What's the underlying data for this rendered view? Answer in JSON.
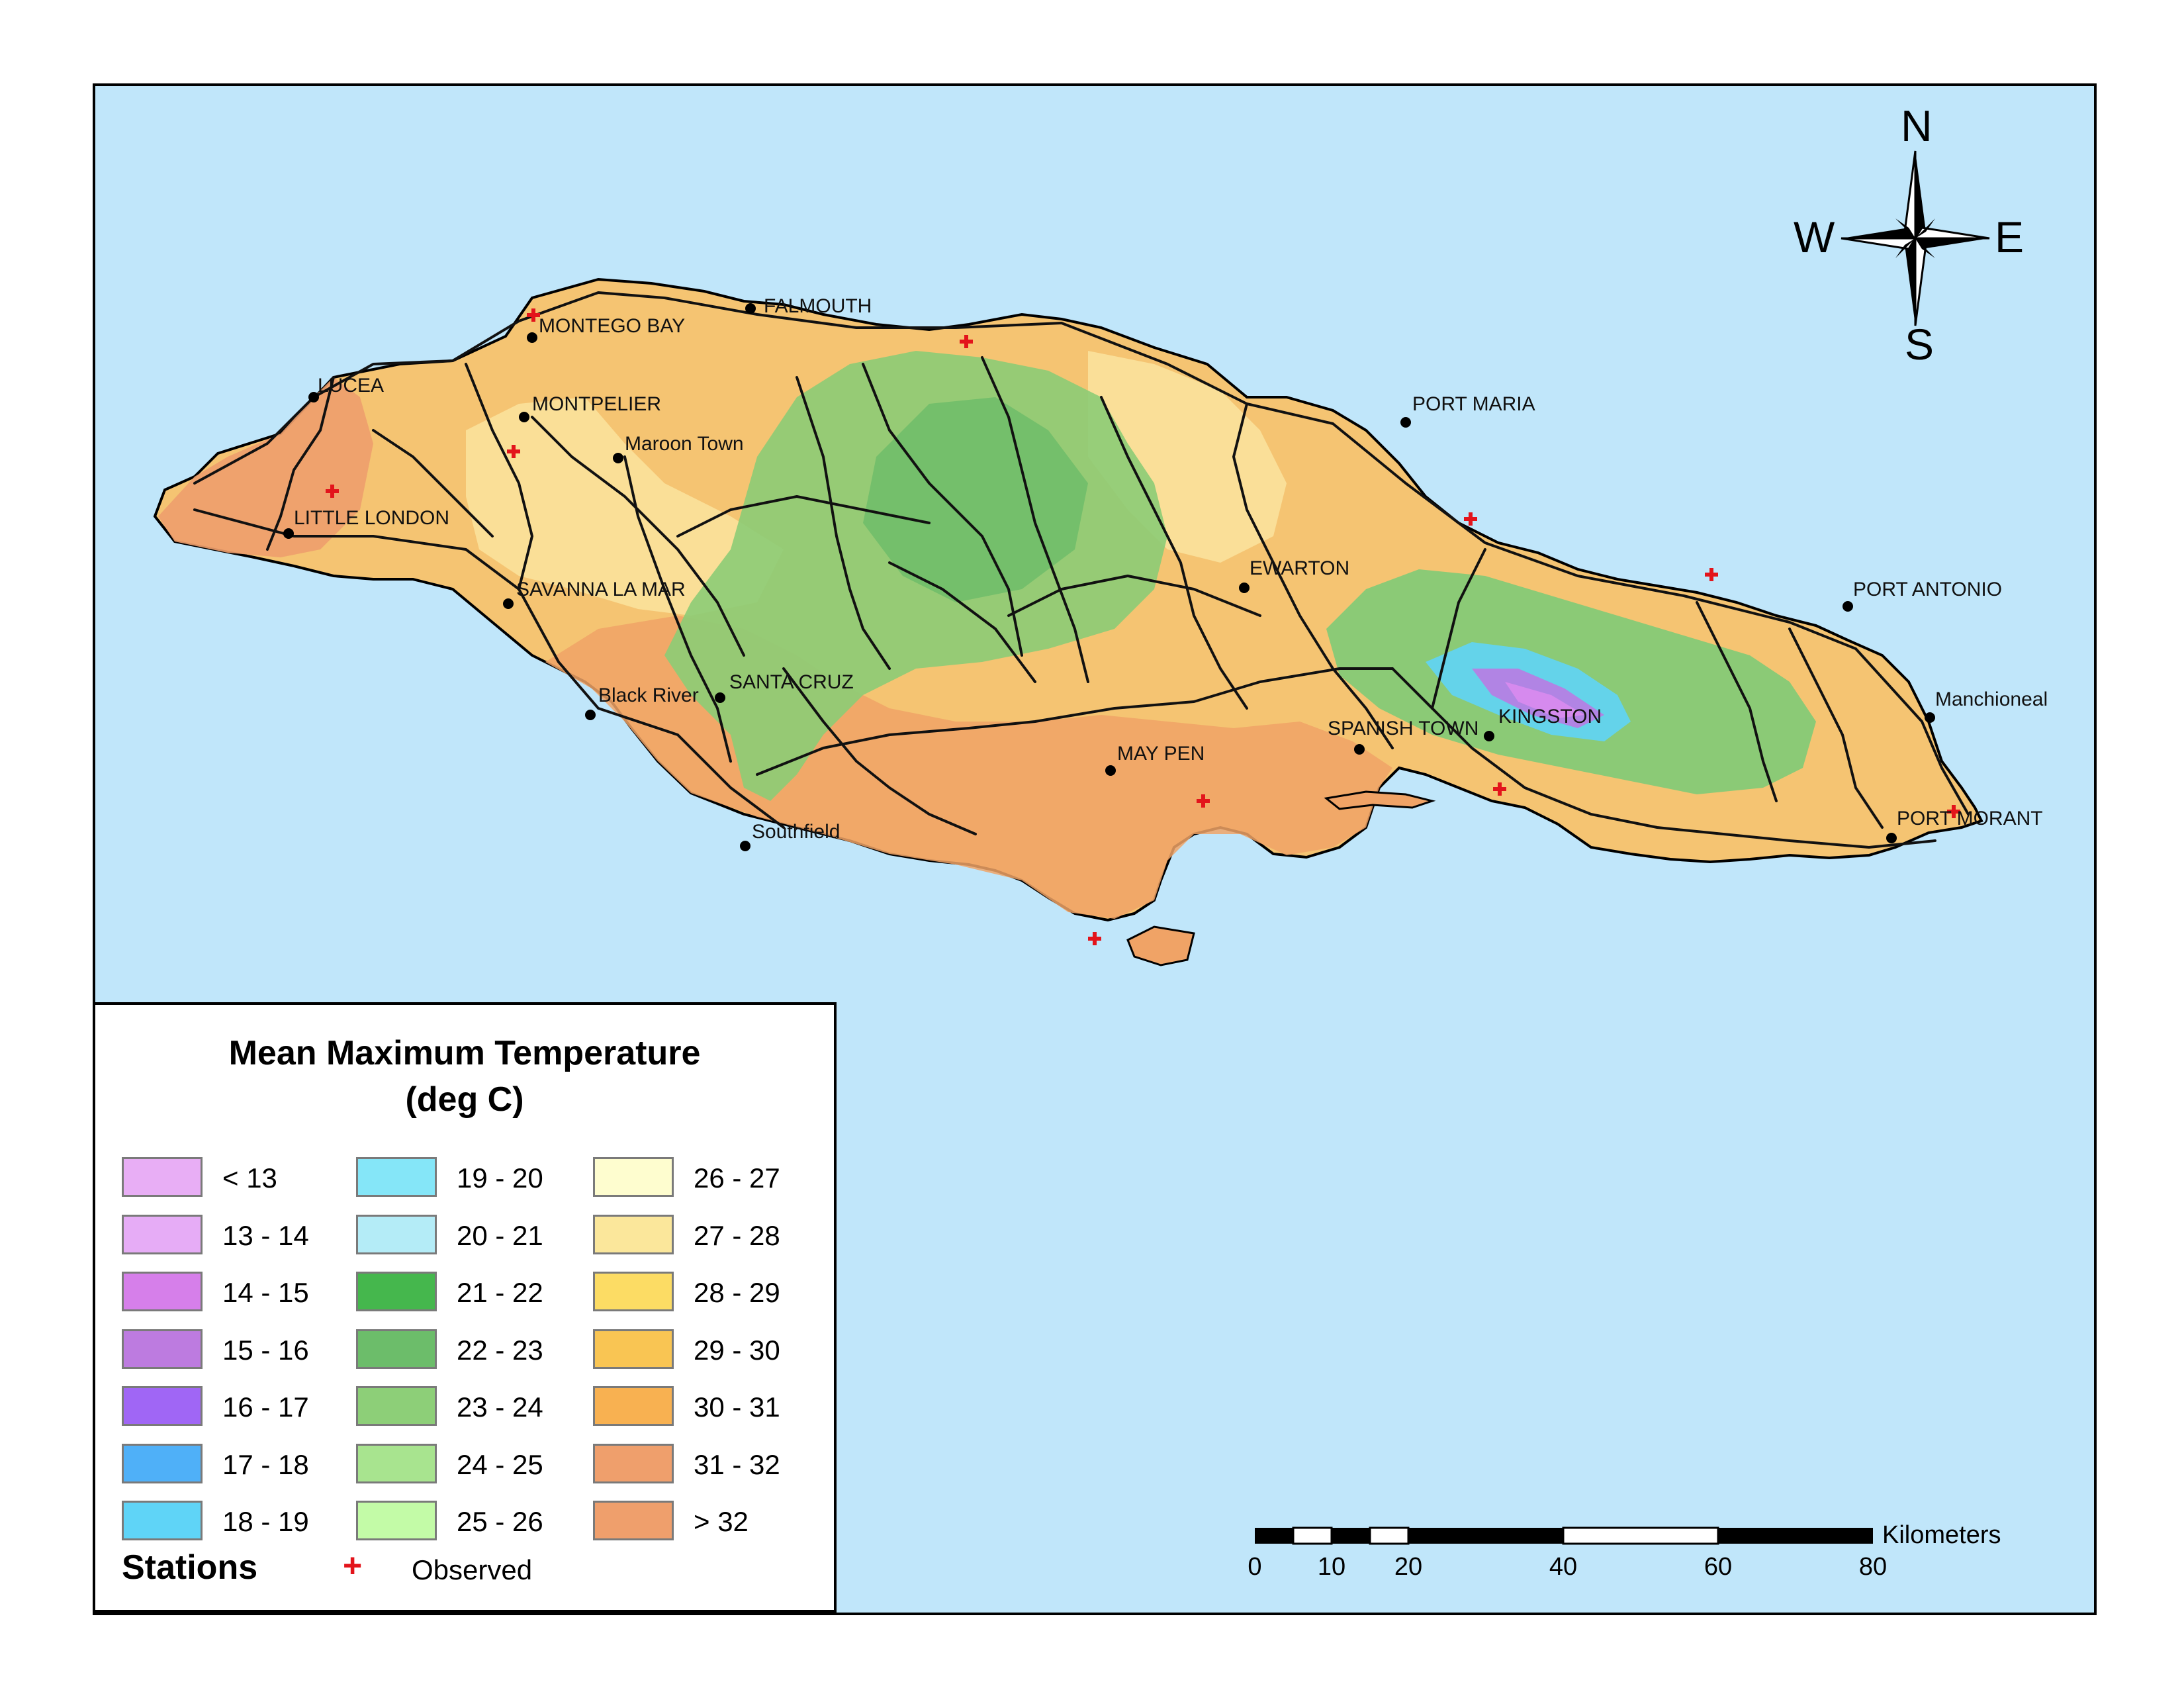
{
  "map": {
    "ocean_color": "#c0e6fa",
    "places": [
      {
        "id": "lucea",
        "name": "LUCEA"
      },
      {
        "id": "montego-bay",
        "name": "MONTEGO BAY"
      },
      {
        "id": "falmouth",
        "name": "FALMOUTH"
      },
      {
        "id": "montpelier",
        "name": "MONTPELIER"
      },
      {
        "id": "maroon-town",
        "name": "Maroon Town"
      },
      {
        "id": "little-london",
        "name": "LITTLE LONDON"
      },
      {
        "id": "savanna-la-mar",
        "name": "SAVANNA LA MAR"
      },
      {
        "id": "black-river",
        "name": "Black River"
      },
      {
        "id": "santa-cruz",
        "name": "SANTA CRUZ"
      },
      {
        "id": "southfield",
        "name": "Southfield"
      },
      {
        "id": "may-pen",
        "name": "MAY PEN"
      },
      {
        "id": "spanish-town",
        "name": "SPANISH TOWN"
      },
      {
        "id": "kingston",
        "name": "KINGSTON"
      },
      {
        "id": "ewarton",
        "name": "EWARTON"
      },
      {
        "id": "port-maria",
        "name": "PORT MARIA"
      },
      {
        "id": "port-antonio",
        "name": "PORT ANTONIO"
      },
      {
        "id": "manchioneal",
        "name": "Manchioneal"
      },
      {
        "id": "port-morant",
        "name": "PORT MORANT"
      }
    ]
  },
  "legend": {
    "title_line1": "Mean Maximum Temperature",
    "title_line2": "(deg C)",
    "classes": [
      {
        "label": "< 13",
        "color": "#e8aef5"
      },
      {
        "label": "13 - 14",
        "color": "#e6acf6"
      },
      {
        "label": "14 - 15",
        "color": "#d67fea"
      },
      {
        "label": "15 - 16",
        "color": "#bd7be0"
      },
      {
        "label": "16 - 17",
        "color": "#a066f5"
      },
      {
        "label": "17 - 18",
        "color": "#4fb0f8"
      },
      {
        "label": "18 - 19",
        "color": "#5fd4f7"
      },
      {
        "label": "19 - 20",
        "color": "#85e6f8"
      },
      {
        "label": "20 - 21",
        "color": "#b4ecf7"
      },
      {
        "label": "21 - 22",
        "color": "#45b74d"
      },
      {
        "label": "22 - 23",
        "color": "#6cbd6a"
      },
      {
        "label": "23 - 24",
        "color": "#8dcf78"
      },
      {
        "label": "24 - 25",
        "color": "#a8e48f"
      },
      {
        "label": "25 - 26",
        "color": "#c3fba7"
      },
      {
        "label": "26 - 27",
        "color": "#fefdcf"
      },
      {
        "label": "27 - 28",
        "color": "#fbe79b"
      },
      {
        "label": "28 - 29",
        "color": "#fcdc64"
      },
      {
        "label": "29 - 30",
        "color": "#f9c553"
      },
      {
        "label": "30 - 31",
        "color": "#f8b151"
      },
      {
        "label": "31 - 32",
        "color": "#ef9f6c"
      },
      {
        "label": "> 32",
        "color": "#ef9f6c"
      }
    ],
    "stations_title": "Stations",
    "stations_symbol": "+",
    "stations_label": "Observed"
  },
  "compass": {
    "n": "N",
    "s": "S",
    "e": "E",
    "w": "W"
  },
  "scalebar": {
    "unit": "Kilometers",
    "ticks": [
      "0",
      "10",
      "20",
      "40",
      "60",
      "80"
    ]
  }
}
